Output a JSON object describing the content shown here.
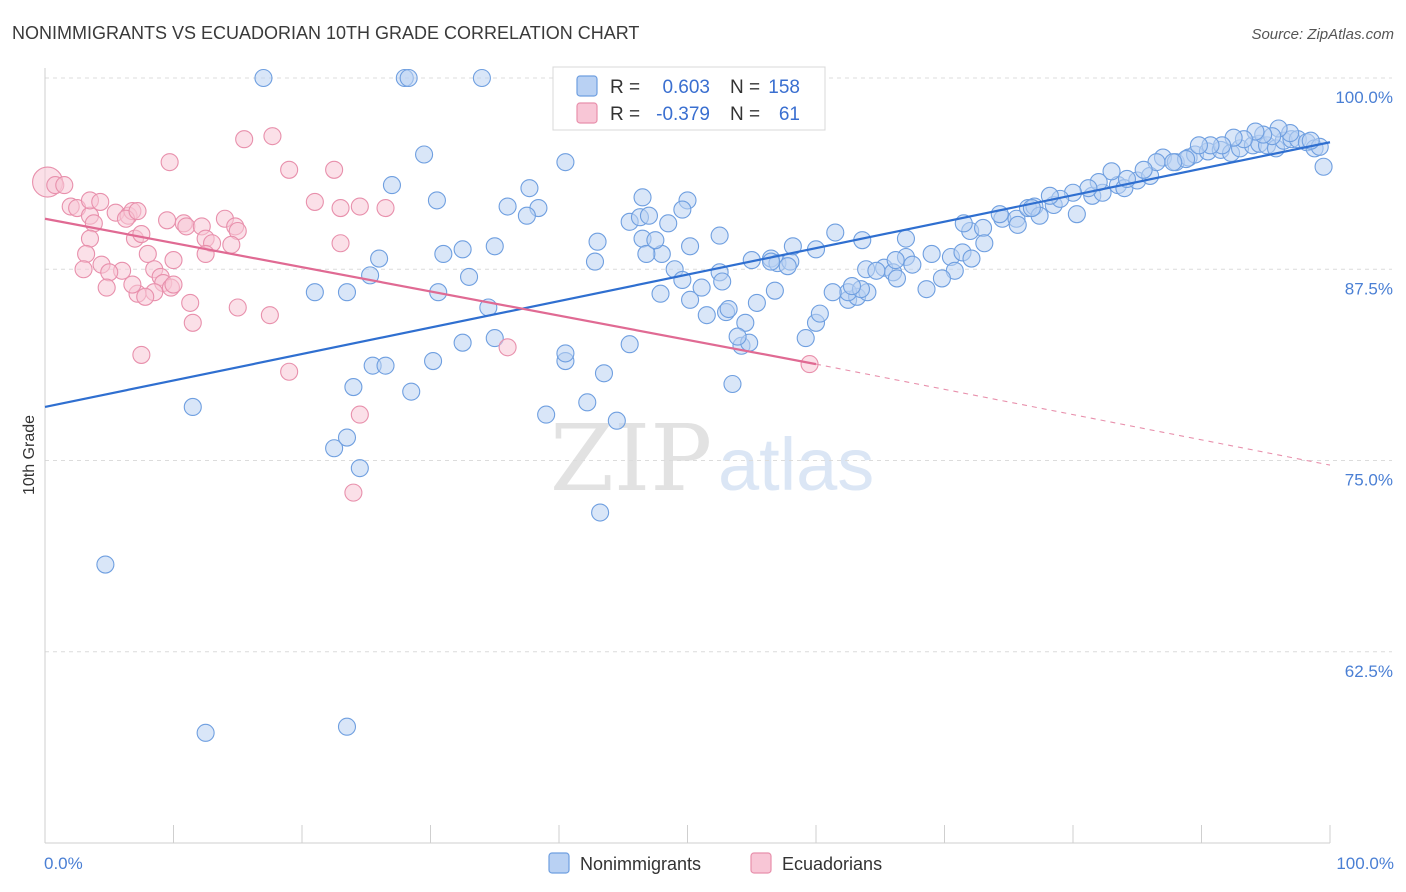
{
  "chart_data": {
    "type": "scatter",
    "title": "NONIMMIGRANTS VS ECUADORIAN 10TH GRADE CORRELATION CHART",
    "source": "Source: ZipAtlas.com",
    "xlabel": "",
    "ylabel": "10th Grade",
    "xlim": [
      0,
      100
    ],
    "ylim": [
      50,
      100
    ],
    "x_tick_labels": [
      "0.0%",
      "100.0%"
    ],
    "y_ticks": [
      62.5,
      75.0,
      87.5,
      100.0
    ],
    "y_tick_labels": [
      "62.5%",
      "75.0%",
      "87.5%",
      "100.0%"
    ],
    "grid": true,
    "watermark": {
      "zip": "ZIP",
      "atlas": "atlas"
    },
    "legend_stats": [
      {
        "r_label": "R =",
        "r_value": "0.603",
        "n_label": "N =",
        "n_value": "158"
      },
      {
        "r_label": "R =",
        "r_value": "-0.379",
        "n_label": "N =",
        "n_value": "61"
      }
    ],
    "series": [
      {
        "name": "Nonimmigrants",
        "color": "#6f9fe0",
        "fill": "#b9d1f3",
        "trend": {
          "x0": 0,
          "y0": 78.5,
          "x1": 100,
          "y1": 95.8
        },
        "points": [
          [
            17,
            100
          ],
          [
            28,
            100
          ],
          [
            28.3,
            100
          ],
          [
            34,
            100
          ],
          [
            29.5,
            95
          ],
          [
            40.5,
            94.5
          ],
          [
            27,
            93
          ],
          [
            30.5,
            92
          ],
          [
            36,
            91.6
          ],
          [
            38.4,
            91.5
          ],
          [
            37.7,
            92.8
          ],
          [
            37.5,
            91
          ],
          [
            46.5,
            92.2
          ],
          [
            50,
            92
          ],
          [
            49.6,
            91.4
          ],
          [
            45.5,
            90.6
          ],
          [
            48.5,
            90.5
          ],
          [
            43,
            89.3
          ],
          [
            46.5,
            89.5
          ],
          [
            48,
            88.5
          ],
          [
            35,
            89
          ],
          [
            31,
            88.5
          ],
          [
            26,
            88.2
          ],
          [
            21,
            86
          ],
          [
            23.5,
            86
          ],
          [
            25.3,
            87.1
          ],
          [
            32.5,
            88.8
          ],
          [
            33,
            87
          ],
          [
            30.6,
            86
          ],
          [
            42.8,
            88
          ],
          [
            49,
            87.5
          ],
          [
            52.5,
            87.3
          ],
          [
            52.7,
            86.7
          ],
          [
            53,
            84.7
          ],
          [
            50.2,
            85.5
          ],
          [
            51.5,
            84.5
          ],
          [
            54.5,
            84
          ],
          [
            56.5,
            88.2
          ],
          [
            57,
            87.9
          ],
          [
            56.5,
            88
          ],
          [
            58,
            88
          ],
          [
            54.2,
            82.5
          ],
          [
            53.5,
            80
          ],
          [
            60,
            84
          ],
          [
            59.2,
            83
          ],
          [
            62.5,
            85.5
          ],
          [
            63.2,
            85.7
          ],
          [
            62.5,
            86
          ],
          [
            64,
            86
          ],
          [
            63.5,
            86.2
          ],
          [
            11.5,
            78.5
          ],
          [
            4.7,
            68.2
          ],
          [
            12.5,
            57.2
          ],
          [
            23.5,
            57.6
          ],
          [
            22.5,
            75.8
          ],
          [
            23.5,
            76.5
          ],
          [
            24.5,
            74.5
          ],
          [
            24,
            79.8
          ],
          [
            25.5,
            81.2
          ],
          [
            26.5,
            81.2
          ],
          [
            28.5,
            79.5
          ],
          [
            30.2,
            81.5
          ],
          [
            32.5,
            82.7
          ],
          [
            35,
            83
          ],
          [
            34.5,
            85
          ],
          [
            40.5,
            81.5
          ],
          [
            40.5,
            82
          ],
          [
            42.2,
            78.8
          ],
          [
            43.5,
            80.7
          ],
          [
            39,
            78
          ],
          [
            44.5,
            77.6
          ],
          [
            43.2,
            71.6
          ],
          [
            45.5,
            82.6
          ],
          [
            46.8,
            88.5
          ],
          [
            47.5,
            89.4
          ],
          [
            46.3,
            90.9
          ],
          [
            47,
            91
          ],
          [
            52.5,
            89.7
          ],
          [
            50.2,
            89
          ],
          [
            55,
            88.1
          ],
          [
            58.2,
            89
          ],
          [
            60,
            88.8
          ],
          [
            61.5,
            89.9
          ],
          [
            63.6,
            89.4
          ],
          [
            63.9,
            87.5
          ],
          [
            65.3,
            87.6
          ],
          [
            66,
            87.3
          ],
          [
            66.3,
            86.9
          ],
          [
            67,
            88.3
          ],
          [
            67,
            89.5
          ],
          [
            69,
            88.5
          ],
          [
            70.5,
            88.3
          ],
          [
            71.4,
            88.6
          ],
          [
            72,
            90
          ],
          [
            71.5,
            90.5
          ],
          [
            73,
            90.2
          ],
          [
            74.5,
            90.8
          ],
          [
            75.6,
            90.8
          ],
          [
            76.5,
            91.5
          ],
          [
            77,
            91.6
          ],
          [
            77.4,
            91
          ],
          [
            78.5,
            91.7
          ],
          [
            80.3,
            91.1
          ],
          [
            81.5,
            92.3
          ],
          [
            82.3,
            92.5
          ],
          [
            83.5,
            93
          ],
          [
            84,
            92.8
          ],
          [
            85,
            93.3
          ],
          [
            86,
            93.6
          ],
          [
            87,
            94.8
          ],
          [
            88,
            94.5
          ],
          [
            89,
            94.8
          ],
          [
            89.5,
            95
          ],
          [
            90.5,
            95.2
          ],
          [
            91.5,
            95.3
          ],
          [
            92.3,
            95.1
          ],
          [
            93,
            95.4
          ],
          [
            94,
            95.6
          ],
          [
            94.5,
            95.7
          ],
          [
            95.1,
            95.6
          ],
          [
            95.8,
            95.4
          ],
          [
            96.4,
            95.9
          ],
          [
            97,
            96
          ],
          [
            97.5,
            96
          ],
          [
            98.2,
            95.8
          ],
          [
            98.8,
            95.4
          ],
          [
            99.5,
            94.2
          ],
          [
            99.2,
            95.5
          ],
          [
            98.5,
            95.9
          ],
          [
            96.9,
            96.4
          ],
          [
            96,
            96.7
          ],
          [
            95.5,
            96.2
          ],
          [
            94.8,
            96.3
          ],
          [
            94.2,
            96.5
          ],
          [
            93.3,
            96
          ],
          [
            92.5,
            96.1
          ],
          [
            91.6,
            95.6
          ],
          [
            90.7,
            95.6
          ],
          [
            89.8,
            95.6
          ],
          [
            88.8,
            94.7
          ],
          [
            87.8,
            94.5
          ],
          [
            86.5,
            94.5
          ],
          [
            85.5,
            94
          ],
          [
            84.2,
            93.4
          ],
          [
            83,
            93.9
          ],
          [
            82,
            93.2
          ],
          [
            81.2,
            92.8
          ],
          [
            80,
            92.5
          ],
          [
            79,
            92.1
          ],
          [
            78.2,
            92.3
          ],
          [
            76.8,
            91.5
          ],
          [
            75.7,
            90.4
          ],
          [
            74.3,
            91.1
          ],
          [
            73.1,
            89.2
          ],
          [
            72.1,
            88.2
          ],
          [
            70.8,
            87.4
          ],
          [
            69.8,
            86.9
          ],
          [
            68.6,
            86.2
          ],
          [
            67.5,
            87.8
          ],
          [
            66.2,
            88.1
          ],
          [
            64.7,
            87.4
          ],
          [
            62.8,
            86.4
          ],
          [
            61.3,
            86
          ],
          [
            60.3,
            84.6
          ],
          [
            57.8,
            87.7
          ],
          [
            56.8,
            86.1
          ],
          [
            55.4,
            85.3
          ],
          [
            54.8,
            82.7
          ],
          [
            53.9,
            83.1
          ],
          [
            53.2,
            84.9
          ],
          [
            51.1,
            86.3
          ],
          [
            49.6,
            86.8
          ],
          [
            47.9,
            85.9
          ]
        ]
      },
      {
        "name": "Ecuadorians",
        "color": "#e890ac",
        "fill": "#f8c6d6",
        "trend": {
          "x0": 0,
          "y0": 90.8,
          "x1": 60,
          "y1": 81.3,
          "dash_to_x": 100,
          "dash_to_y": 74.7
        },
        "points": [
          [
            0.2,
            93.2
          ],
          [
            0.8,
            93
          ],
          [
            1.5,
            93
          ],
          [
            2,
            91.6
          ],
          [
            2.5,
            91.5
          ],
          [
            3.5,
            91
          ],
          [
            3.8,
            90.5
          ],
          [
            3.5,
            92
          ],
          [
            4.3,
            91.9
          ],
          [
            5.5,
            91.2
          ],
          [
            6.5,
            91
          ],
          [
            6.8,
            91.3
          ],
          [
            6.3,
            90.8
          ],
          [
            7.2,
            91.3
          ],
          [
            9.5,
            90.7
          ],
          [
            10.8,
            90.5
          ],
          [
            11,
            90.3
          ],
          [
            12.2,
            90.3
          ],
          [
            14,
            90.8
          ],
          [
            14.8,
            90.3
          ],
          [
            15,
            90
          ],
          [
            12.5,
            89.5
          ],
          [
            13,
            89.2
          ],
          [
            14.5,
            89.1
          ],
          [
            12.5,
            88.5
          ],
          [
            10,
            88.1
          ],
          [
            7,
            89.5
          ],
          [
            7.5,
            89.8
          ],
          [
            8,
            88.5
          ],
          [
            8.5,
            87.5
          ],
          [
            9,
            87
          ],
          [
            9.2,
            86.6
          ],
          [
            9.8,
            86.3
          ],
          [
            8.5,
            86
          ],
          [
            7.2,
            85.9
          ],
          [
            7.8,
            85.7
          ],
          [
            6,
            87.4
          ],
          [
            6.8,
            86.5
          ],
          [
            3.5,
            89.5
          ],
          [
            4.4,
            87.8
          ],
          [
            5,
            87.3
          ],
          [
            3.2,
            88.5
          ],
          [
            3,
            87.5
          ],
          [
            4.8,
            86.3
          ],
          [
            11.5,
            84
          ],
          [
            15,
            85
          ],
          [
            17.5,
            84.5
          ],
          [
            7.5,
            81.9
          ],
          [
            10,
            86.5
          ],
          [
            11.3,
            85.3
          ],
          [
            9.7,
            94.5
          ],
          [
            15.5,
            96
          ],
          [
            17.7,
            96.2
          ],
          [
            19,
            94
          ],
          [
            21,
            91.9
          ],
          [
            23,
            91.5
          ],
          [
            24.5,
            91.6
          ],
          [
            26.5,
            91.5
          ],
          [
            22.5,
            94
          ],
          [
            23,
            89.2
          ],
          [
            19,
            80.8
          ],
          [
            24.5,
            78
          ],
          [
            24,
            72.9
          ],
          [
            36,
            82.4
          ],
          [
            59.5,
            81.3
          ]
        ]
      }
    ]
  }
}
